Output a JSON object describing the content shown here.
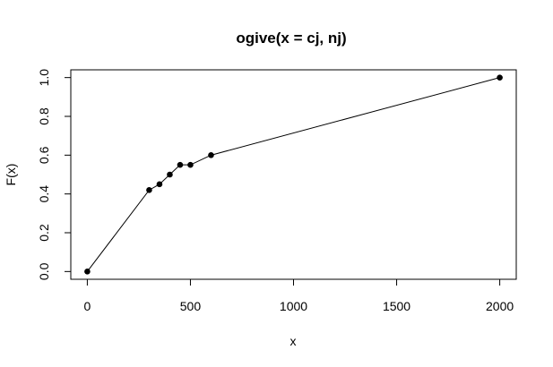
{
  "chart_data": {
    "type": "line",
    "title": "ogive(x = cj, nj)",
    "xlabel": "x",
    "ylabel": "F(x)",
    "xlim": [
      -80,
      2080
    ],
    "ylim": [
      -0.04,
      1.04
    ],
    "xticks": [
      0,
      500,
      1000,
      1500,
      2000
    ],
    "xtick_labels": [
      "0",
      "500",
      "1000",
      "1500",
      "2000"
    ],
    "yticks": [
      0,
      0.2,
      0.4,
      0.6,
      0.8,
      1.0
    ],
    "ytick_labels": [
      "0.0",
      "0.2",
      "0.4",
      "0.6",
      "0.8",
      "1.0"
    ],
    "grid": false,
    "legend": "none",
    "point_marker": "filled-circle",
    "line_color": "#000000",
    "x": [
      0,
      300,
      350,
      400,
      450,
      500,
      600,
      2000
    ],
    "y": [
      0,
      0.42,
      0.45,
      0.5,
      0.55,
      0.55,
      0.6,
      1.0
    ]
  }
}
